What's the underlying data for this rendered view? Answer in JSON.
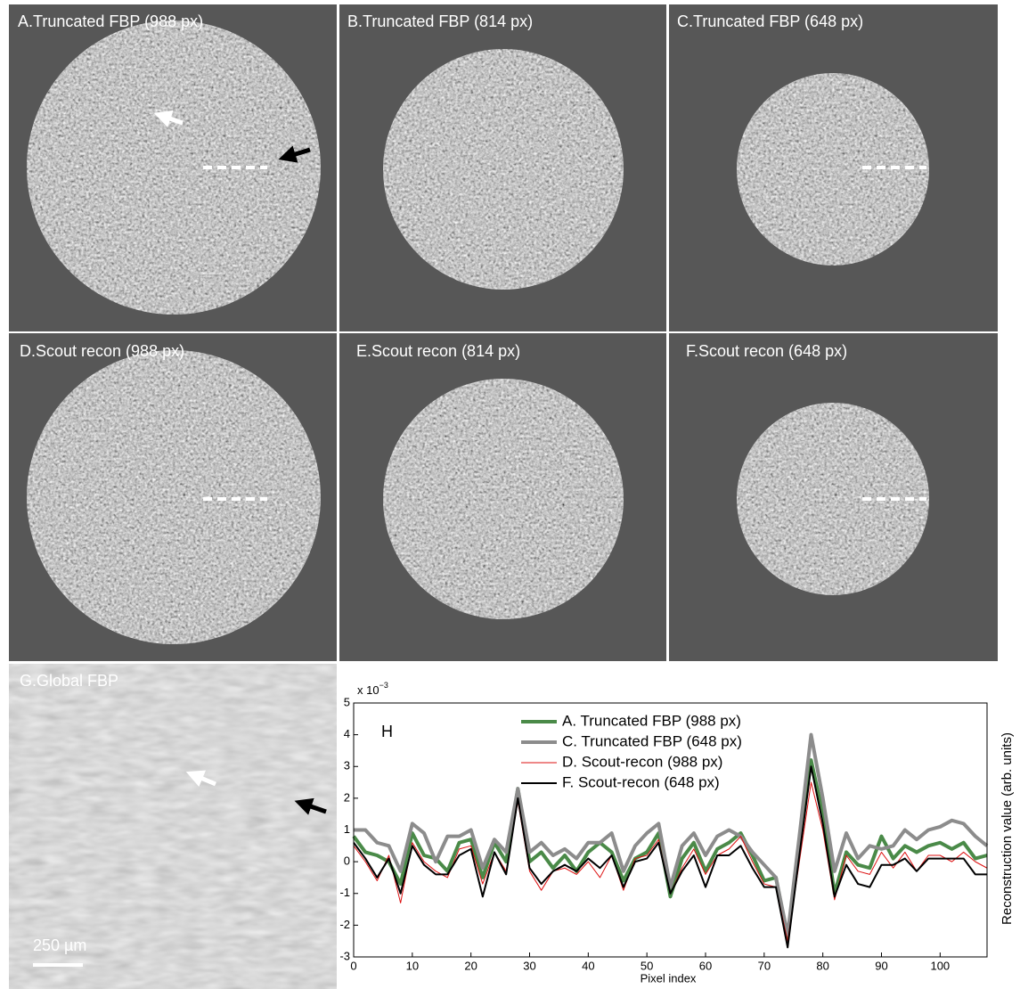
{
  "panels": [
    {
      "title": "A.Truncated FBP (988 px)"
    },
    {
      "title": "B.Truncated FBP (814 px)"
    },
    {
      "title": "C.Truncated FBP (648 px)"
    },
    {
      "title": "D.Scout recon (988 px)"
    },
    {
      "title": "E.Scout recon (814 px)"
    },
    {
      "title": "F.Scout recon (648 px)"
    },
    {
      "title": "G.Global FBP"
    }
  ],
  "scale_bar": "250 µm",
  "chart_data": {
    "type": "line",
    "annotation": "H",
    "y_scale_label": "x 10",
    "y_scale_exponent": "−3",
    "xlabel": "Pixel index",
    "ylabel": "Reconstruction value (arb. units)",
    "xlim": [
      0,
      108
    ],
    "ylim": [
      -3,
      5
    ],
    "xticks": [
      0,
      10,
      20,
      30,
      40,
      50,
      60,
      70,
      80,
      90,
      100
    ],
    "yticks": [
      -3,
      -2,
      -1,
      0,
      1,
      2,
      3,
      4,
      5
    ],
    "legend": "upper center",
    "x": [
      0,
      2,
      4,
      6,
      8,
      10,
      12,
      14,
      16,
      18,
      20,
      22,
      24,
      26,
      28,
      30,
      32,
      34,
      36,
      38,
      40,
      42,
      44,
      46,
      48,
      50,
      52,
      54,
      56,
      58,
      60,
      62,
      64,
      66,
      68,
      70,
      72,
      74,
      76,
      78,
      80,
      82,
      84,
      86,
      88,
      90,
      92,
      94,
      96,
      98,
      100,
      102,
      104,
      106,
      108
    ],
    "series": [
      {
        "name": "A. Truncated FBP (988 px)",
        "color": "#4a8a48",
        "width": 4,
        "values": [
          0.8,
          0.3,
          0.2,
          0.0,
          -0.7,
          0.9,
          0.2,
          0.1,
          -0.3,
          0.6,
          0.7,
          -0.5,
          0.6,
          0.0,
          2.3,
          0.0,
          0.3,
          -0.2,
          0.2,
          -0.3,
          0.3,
          0.6,
          0.3,
          -0.6,
          0.1,
          0.3,
          0.9,
          -1.1,
          0.1,
          0.6,
          -0.3,
          0.4,
          0.6,
          0.9,
          0.2,
          -0.6,
          -0.5,
          -2.4,
          0.5,
          3.2,
          1.5,
          -1.0,
          0.3,
          -0.1,
          -0.2,
          0.8,
          0.1,
          0.5,
          0.3,
          0.5,
          0.6,
          0.4,
          0.6,
          0.1,
          0.2
        ]
      },
      {
        "name": "C. Truncated FBP (648 px)",
        "color": "#8c8c8c",
        "width": 4,
        "values": [
          1.0,
          1.0,
          0.6,
          0.5,
          -0.3,
          1.2,
          0.9,
          0.0,
          0.8,
          0.8,
          1.0,
          -0.2,
          0.7,
          0.3,
          2.3,
          0.3,
          0.6,
          0.2,
          0.4,
          0.1,
          0.6,
          0.6,
          0.9,
          -0.3,
          0.5,
          0.9,
          1.2,
          -0.8,
          0.5,
          0.9,
          0.2,
          0.8,
          1.0,
          0.8,
          0.3,
          -0.1,
          -0.5,
          -2.3,
          0.8,
          4.0,
          2.0,
          -0.3,
          0.9,
          0.1,
          0.5,
          0.4,
          0.5,
          1.0,
          0.7,
          1.0,
          1.1,
          1.3,
          1.2,
          0.8,
          0.5
        ]
      },
      {
        "name": "D. Scout-recon (988 px)",
        "color": "#dd1111",
        "width": 1,
        "values": [
          0.5,
          0.0,
          -0.6,
          0.2,
          -1.3,
          0.6,
          0.0,
          -0.3,
          -0.5,
          0.4,
          0.5,
          -0.7,
          0.3,
          -0.3,
          1.9,
          -0.3,
          -0.9,
          -0.3,
          -0.2,
          -0.4,
          0.0,
          -0.5,
          0.2,
          -0.9,
          0.1,
          0.2,
          0.7,
          -1.0,
          -0.2,
          0.4,
          -0.4,
          0.2,
          0.4,
          0.8,
          0.0,
          -0.7,
          -0.8,
          -2.5,
          0.0,
          2.5,
          1.0,
          -1.2,
          0.2,
          -0.3,
          -0.4,
          0.3,
          -0.2,
          0.3,
          -0.3,
          0.2,
          0.2,
          0.0,
          0.3,
          0.0,
          -0.2
        ]
      },
      {
        "name": "F. Scout-recon (648 px)",
        "color": "#000000",
        "width": 2,
        "values": [
          0.6,
          0.1,
          -0.5,
          0.1,
          -1.0,
          0.5,
          -0.1,
          -0.4,
          -0.4,
          0.2,
          0.4,
          -1.1,
          0.3,
          -0.4,
          2.0,
          -0.2,
          -0.7,
          -0.3,
          -0.1,
          -0.3,
          0.1,
          -0.2,
          0.2,
          -0.8,
          0.0,
          0.1,
          0.6,
          -1.0,
          -0.3,
          0.2,
          -0.8,
          0.2,
          0.2,
          0.5,
          -0.2,
          -0.8,
          -0.8,
          -2.7,
          0.2,
          3.0,
          1.2,
          -1.1,
          -0.1,
          -0.7,
          -0.8,
          -0.1,
          -0.1,
          0.1,
          -0.3,
          0.1,
          0.1,
          0.1,
          0.1,
          -0.4,
          -0.4
        ]
      }
    ]
  }
}
